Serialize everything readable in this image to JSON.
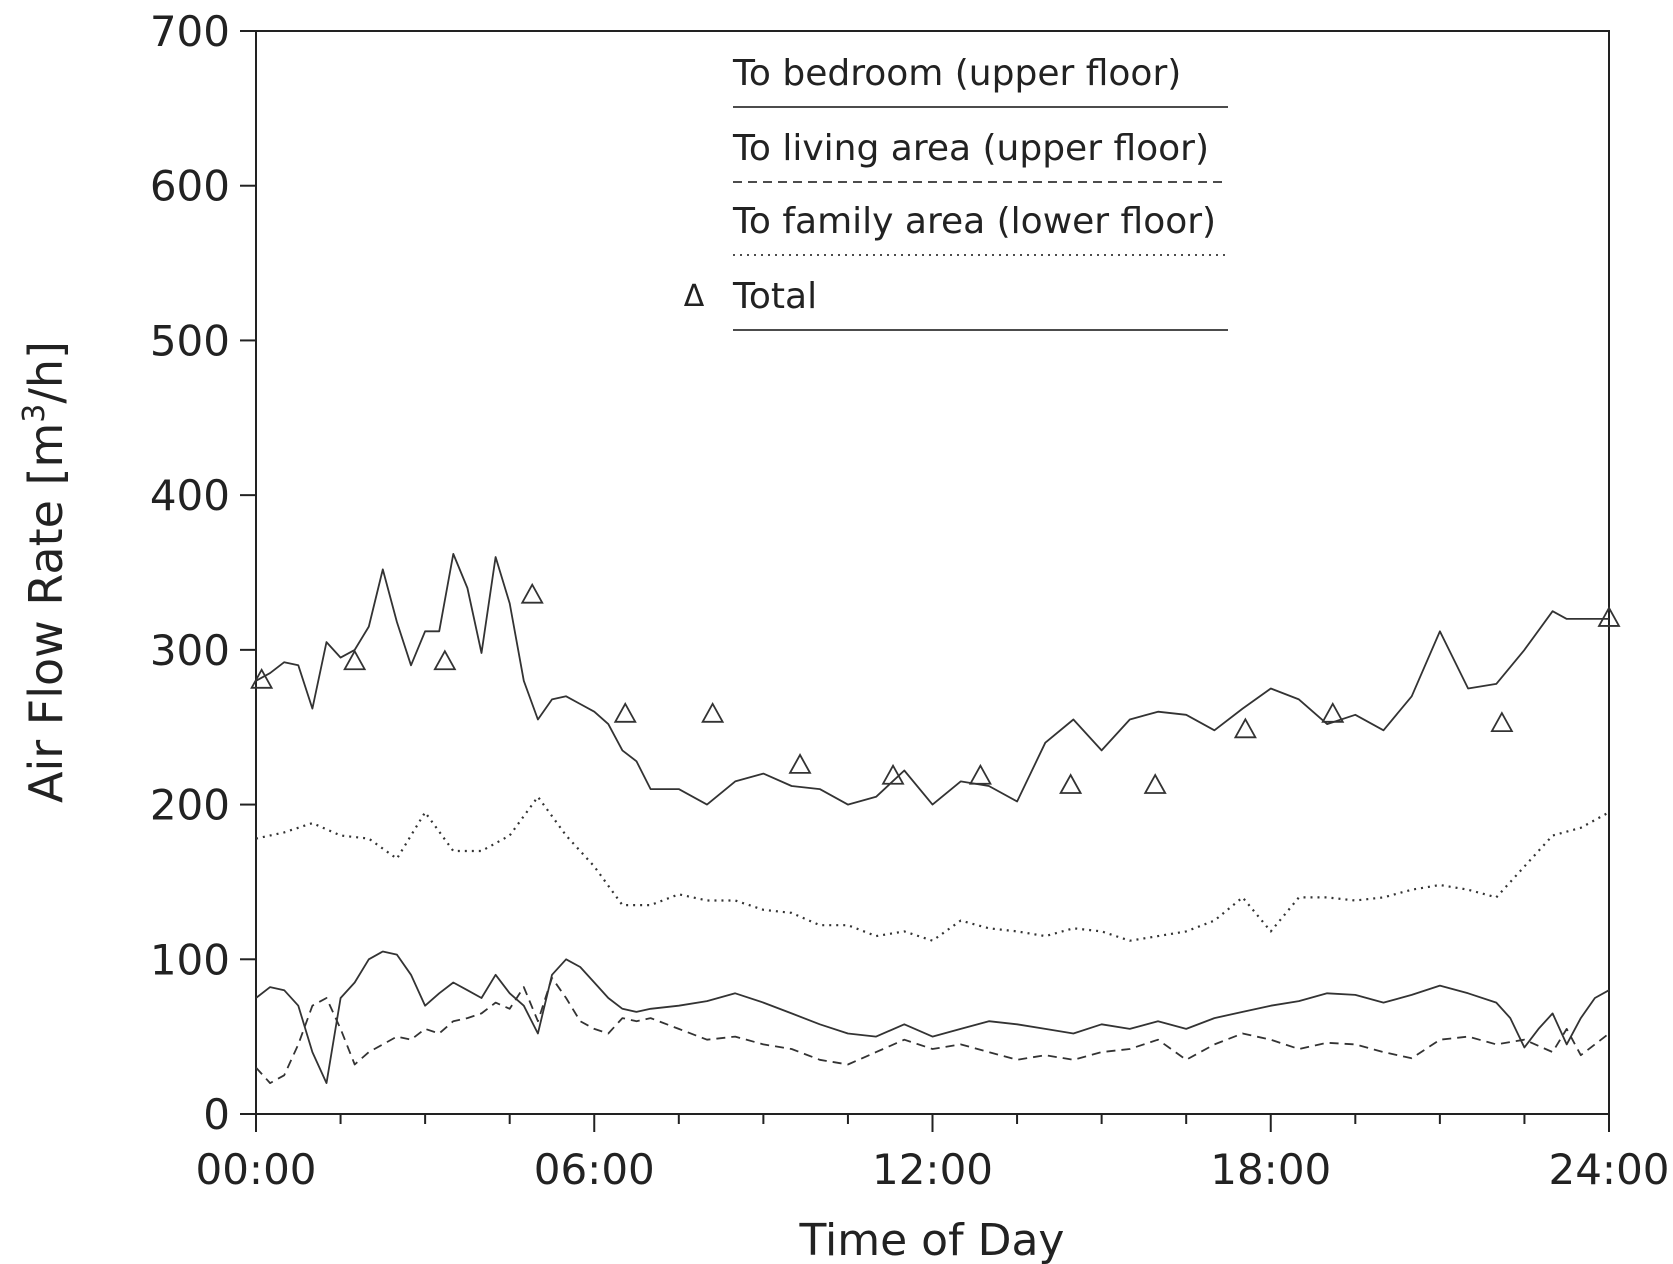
{
  "chart_data": {
    "type": "line",
    "xlabel": "Time of Day",
    "ylabel_prefix": "Air Flow Rate [m",
    "ylabel_sup": "3",
    "ylabel_suffix": "/h]",
    "ylim": [
      0,
      700
    ],
    "xlim": [
      0,
      24
    ],
    "x_ticks": [
      0,
      6,
      12,
      18,
      24
    ],
    "x_tick_labels": [
      "00:00",
      "06:00",
      "12:00",
      "18:00",
      "24:00"
    ],
    "y_ticks": [
      0,
      100,
      200,
      300,
      400,
      500,
      600,
      700
    ],
    "y_tick_labels": [
      "0",
      "100",
      "200",
      "300",
      "400",
      "500",
      "600",
      "700"
    ],
    "minor_x_tick_interval_hours": 1.5,
    "grid": false,
    "legend_position": "top-center",
    "legend": [
      {
        "label": "To bedroom (upper floor)",
        "style": "solid",
        "marker": ""
      },
      {
        "label": "To living area (upper floor)",
        "style": "dashed",
        "marker": ""
      },
      {
        "label": "To family area (lower floor)",
        "style": "dotted",
        "marker": ""
      },
      {
        "label": "Total",
        "style": "solid",
        "marker": "Δ"
      }
    ],
    "series": [
      {
        "name": "To bedroom (upper floor)",
        "style": "solid",
        "x": [
          0,
          0.25,
          0.5,
          0.75,
          1.0,
          1.25,
          1.5,
          1.75,
          2.0,
          2.25,
          2.5,
          2.75,
          3.0,
          3.25,
          3.5,
          3.75,
          4.0,
          4.25,
          4.5,
          4.75,
          5.0,
          5.25,
          5.5,
          5.75,
          6.0,
          6.25,
          6.5,
          6.75,
          7.0,
          7.5,
          8.0,
          8.5,
          9.0,
          9.5,
          10.0,
          10.5,
          11.0,
          11.5,
          12.0,
          12.5,
          13.0,
          13.5,
          14.0,
          14.5,
          15.0,
          15.5,
          16.0,
          16.5,
          17.0,
          17.5,
          18.0,
          18.5,
          19.0,
          19.5,
          20.0,
          20.5,
          21.0,
          21.5,
          22.0,
          22.25,
          22.5,
          22.75,
          23.0,
          23.25,
          23.5,
          23.75,
          24.0
        ],
        "y": [
          75,
          82,
          80,
          70,
          40,
          20,
          75,
          85,
          100,
          105,
          103,
          90,
          70,
          78,
          85,
          80,
          75,
          90,
          78,
          70,
          52,
          90,
          100,
          95,
          85,
          75,
          68,
          66,
          68,
          70,
          73,
          78,
          72,
          65,
          58,
          52,
          50,
          58,
          50,
          55,
          60,
          58,
          55,
          52,
          58,
          55,
          60,
          55,
          62,
          66,
          70,
          73,
          78,
          77,
          72,
          77,
          83,
          78,
          72,
          62,
          43,
          55,
          65,
          45,
          62,
          75,
          80
        ]
      },
      {
        "name": "To living area (upper floor)",
        "style": "dashed",
        "x": [
          0,
          0.25,
          0.5,
          0.75,
          1.0,
          1.25,
          1.5,
          1.75,
          2.0,
          2.25,
          2.5,
          2.75,
          3.0,
          3.25,
          3.5,
          3.75,
          4.0,
          4.25,
          4.5,
          4.75,
          5.0,
          5.25,
          5.5,
          5.75,
          6.0,
          6.25,
          6.5,
          6.75,
          7.0,
          7.5,
          8.0,
          8.5,
          9.0,
          9.5,
          10.0,
          10.5,
          11.0,
          11.5,
          12.0,
          12.5,
          13.0,
          13.5,
          14.0,
          14.5,
          15.0,
          15.5,
          16.0,
          16.5,
          17.0,
          17.5,
          18.0,
          18.5,
          19.0,
          19.5,
          20.0,
          20.5,
          21.0,
          21.5,
          22.0,
          22.5,
          23.0,
          23.25,
          23.5,
          23.75,
          24.0
        ],
        "y": [
          30,
          20,
          25,
          45,
          70,
          75,
          55,
          32,
          40,
          45,
          50,
          48,
          55,
          52,
          60,
          62,
          65,
          72,
          68,
          82,
          60,
          88,
          75,
          60,
          55,
          52,
          62,
          60,
          62,
          55,
          48,
          50,
          45,
          42,
          35,
          32,
          40,
          48,
          42,
          45,
          40,
          35,
          38,
          35,
          40,
          42,
          48,
          35,
          45,
          52,
          48,
          42,
          46,
          45,
          40,
          36,
          48,
          50,
          45,
          48,
          40,
          55,
          38,
          45,
          52
        ]
      },
      {
        "name": "To family area (lower floor)",
        "style": "dotted",
        "x": [
          0,
          0.5,
          1.0,
          1.5,
          2.0,
          2.5,
          3.0,
          3.5,
          4.0,
          4.5,
          5.0,
          5.5,
          6.0,
          6.5,
          7.0,
          7.5,
          8.0,
          8.5,
          9.0,
          9.5,
          10.0,
          10.5,
          11.0,
          11.5,
          12.0,
          12.5,
          13.0,
          13.5,
          14.0,
          14.5,
          15.0,
          15.5,
          16.0,
          16.5,
          17.0,
          17.5,
          18.0,
          18.5,
          19.0,
          19.5,
          20.0,
          20.5,
          21.0,
          21.5,
          22.0,
          22.5,
          23.0,
          23.5,
          24.0
        ],
        "y": [
          178,
          182,
          188,
          180,
          178,
          165,
          195,
          170,
          170,
          180,
          205,
          180,
          160,
          135,
          135,
          142,
          138,
          138,
          132,
          130,
          122,
          122,
          115,
          118,
          112,
          125,
          120,
          118,
          115,
          120,
          118,
          112,
          115,
          118,
          125,
          140,
          118,
          140,
          140,
          138,
          140,
          145,
          148,
          145,
          140,
          160,
          180,
          185,
          195
        ]
      },
      {
        "name": "Total",
        "style": "solid",
        "marker": "triangle",
        "x": [
          0,
          0.25,
          0.5,
          0.75,
          1.0,
          1.25,
          1.5,
          1.75,
          2.0,
          2.25,
          2.5,
          2.75,
          3.0,
          3.25,
          3.5,
          3.75,
          4.0,
          4.25,
          4.5,
          4.75,
          5.0,
          5.25,
          5.5,
          5.75,
          6.0,
          6.25,
          6.5,
          6.75,
          7.0,
          7.5,
          8.0,
          8.5,
          9.0,
          9.5,
          10.0,
          10.5,
          11.0,
          11.5,
          12.0,
          12.5,
          13.0,
          13.5,
          14.0,
          14.5,
          15.0,
          15.5,
          16.0,
          16.5,
          17.0,
          17.5,
          18.0,
          18.5,
          19.0,
          19.5,
          20.0,
          20.5,
          21.0,
          21.5,
          22.0,
          22.5,
          23.0,
          23.25,
          23.5,
          23.75,
          24.0
        ],
        "y": [
          280,
          285,
          292,
          290,
          262,
          305,
          295,
          300,
          315,
          352,
          318,
          290,
          312,
          312,
          362,
          340,
          298,
          360,
          330,
          280,
          255,
          268,
          270,
          265,
          260,
          252,
          235,
          228,
          210,
          210,
          200,
          215,
          220,
          212,
          210,
          200,
          205,
          222,
          200,
          215,
          212,
          202,
          240,
          255,
          235,
          255,
          260,
          258,
          248,
          262,
          275,
          268,
          252,
          258,
          248,
          270,
          312,
          275,
          278,
          300,
          325,
          320,
          320,
          320,
          320
        ],
        "marker_x": [
          0.1,
          1.75,
          3.35,
          4.9,
          6.55,
          8.1,
          9.65,
          11.3,
          12.85,
          14.45,
          15.95,
          17.55,
          19.1,
          22.1,
          24.0
        ],
        "marker_y": [
          280,
          292,
          292,
          335,
          258,
          258,
          225,
          218,
          218,
          212,
          212,
          248,
          258,
          252,
          320
        ]
      }
    ]
  }
}
